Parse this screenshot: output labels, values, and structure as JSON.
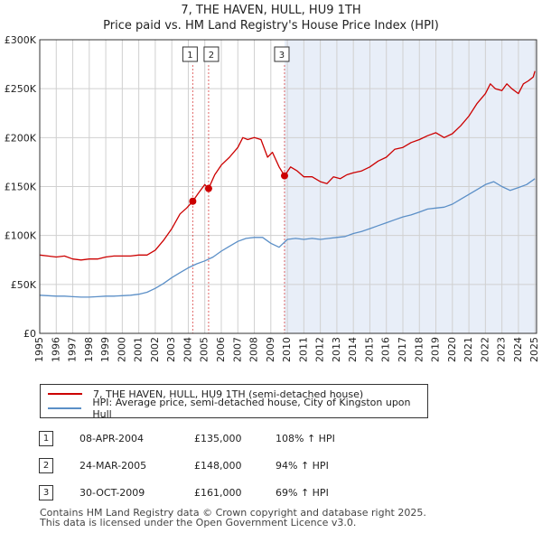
{
  "header": {
    "title": "7, THE HAVEN, HULL, HU9 1TH",
    "subtitle": "Price paid vs. HM Land Registry's House Price Index (HPI)"
  },
  "colors": {
    "property": "#cc0000",
    "hpi": "#5b8fc7",
    "shade": "#e8eef8",
    "grid": "#d0d0d0"
  },
  "chart_data": {
    "type": "line",
    "title": "Price paid vs. HM Land Registry's House Price Index (HPI)",
    "xlabel": "",
    "ylabel": "",
    "xlim": [
      1995,
      2025.1
    ],
    "ylim": [
      0,
      300000
    ],
    "grid": true,
    "y_ticks": [
      0,
      50000,
      100000,
      150000,
      200000,
      250000,
      300000
    ],
    "y_tick_labels": [
      "£0",
      "£50K",
      "£100K",
      "£150K",
      "£200K",
      "£250K",
      "£300K"
    ],
    "x_ticks": [
      1995,
      1996,
      1997,
      1998,
      1999,
      2000,
      2001,
      2002,
      2003,
      2004,
      2005,
      2006,
      2007,
      2008,
      2009,
      2010,
      2011,
      2012,
      2013,
      2014,
      2015,
      2016,
      2017,
      2018,
      2019,
      2020,
      2021,
      2022,
      2023,
      2024,
      2025
    ],
    "x_tick_labels": [
      "1995",
      "1996",
      "1997",
      "1998",
      "1999",
      "2000",
      "2001",
      "2002",
      "2003",
      "2004",
      "2005",
      "2006",
      "2007",
      "2008",
      "2009",
      "2010",
      "2011",
      "2012",
      "2013",
      "2014",
      "2015",
      "2016",
      "2017",
      "2018",
      "2019",
      "2020",
      "2021",
      "2022",
      "2023",
      "2024",
      "2025"
    ],
    "series": [
      {
        "name": "7, THE HAVEN, HULL, HU9 1TH (semi-detached house)",
        "color": "#cc0000",
        "x": [
          1995.0,
          1995.5,
          1996.0,
          1996.5,
          1997.0,
          1997.5,
          1998.0,
          1998.5,
          1999.0,
          1999.5,
          2000.0,
          2000.5,
          2001.0,
          2001.5,
          2002.0,
          2002.5,
          2003.0,
          2003.5,
          2003.9,
          2004.27,
          2004.6,
          2005.0,
          2005.23,
          2005.6,
          2006.0,
          2006.5,
          2007.0,
          2007.3,
          2007.6,
          2008.0,
          2008.4,
          2008.8,
          2009.1,
          2009.5,
          2009.83,
          2010.2,
          2010.6,
          2011.0,
          2011.5,
          2012.0,
          2012.4,
          2012.8,
          2013.2,
          2013.6,
          2014.0,
          2014.5,
          2015.0,
          2015.5,
          2016.0,
          2016.5,
          2017.0,
          2017.5,
          2018.0,
          2018.5,
          2019.0,
          2019.5,
          2020.0,
          2020.5,
          2021.0,
          2021.5,
          2022.0,
          2022.3,
          2022.6,
          2023.0,
          2023.3,
          2023.6,
          2024.0,
          2024.3,
          2024.6,
          2024.9,
          2025.0
        ],
        "values": [
          80000,
          79000,
          78000,
          79000,
          76000,
          75000,
          76000,
          76000,
          78000,
          79000,
          79000,
          79000,
          80000,
          80000,
          85000,
          95000,
          107000,
          122000,
          128000,
          135000,
          143000,
          152000,
          148000,
          162000,
          172000,
          180000,
          190000,
          200000,
          198000,
          200000,
          198000,
          180000,
          185000,
          170000,
          161000,
          170000,
          166000,
          160000,
          160000,
          155000,
          153000,
          160000,
          158000,
          162000,
          164000,
          166000,
          170000,
          176000,
          180000,
          188000,
          190000,
          195000,
          198000,
          202000,
          205000,
          200000,
          204000,
          212000,
          222000,
          235000,
          245000,
          255000,
          250000,
          248000,
          255000,
          250000,
          245000,
          255000,
          258000,
          262000,
          268000
        ]
      },
      {
        "name": "HPI: Average price, semi-detached house, City of Kingston upon Hull",
        "color": "#5b8fc7",
        "x": [
          1995.0,
          1995.5,
          1996.0,
          1996.5,
          1997.0,
          1997.5,
          1998.0,
          1998.5,
          1999.0,
          1999.5,
          2000.0,
          2000.5,
          2001.0,
          2001.5,
          2002.0,
          2002.5,
          2003.0,
          2003.5,
          2004.0,
          2004.5,
          2005.0,
          2005.5,
          2006.0,
          2006.5,
          2007.0,
          2007.5,
          2008.0,
          2008.5,
          2009.0,
          2009.5,
          2010.0,
          2010.5,
          2011.0,
          2011.5,
          2012.0,
          2012.5,
          2013.0,
          2013.5,
          2014.0,
          2014.5,
          2015.0,
          2015.5,
          2016.0,
          2016.5,
          2017.0,
          2017.5,
          2018.0,
          2018.5,
          2019.0,
          2019.5,
          2020.0,
          2020.5,
          2021.0,
          2021.5,
          2022.0,
          2022.5,
          2023.0,
          2023.5,
          2024.0,
          2024.5,
          2025.0
        ],
        "values": [
          39000,
          38500,
          38000,
          38000,
          37500,
          37000,
          37000,
          37500,
          38000,
          38000,
          38500,
          39000,
          40000,
          42000,
          46000,
          51000,
          57000,
          62000,
          67000,
          71000,
          74000,
          78000,
          84000,
          89000,
          94000,
          97000,
          98000,
          98000,
          92000,
          88000,
          96000,
          97000,
          96000,
          97000,
          96000,
          97000,
          98000,
          99000,
          102000,
          104000,
          107000,
          110000,
          113000,
          116000,
          119000,
          121000,
          124000,
          127000,
          128000,
          129000,
          132000,
          137000,
          142000,
          147000,
          152000,
          155000,
          150000,
          146000,
          149000,
          152000,
          158000
        ]
      }
    ],
    "annotations": [
      {
        "label": "1",
        "x": 2004.27,
        "value": 135000
      },
      {
        "label": "2",
        "x": 2005.23,
        "value": 148000
      },
      {
        "label": "3",
        "x": 2009.83,
        "value": 161000
      }
    ],
    "shaded_from": 2009.83
  },
  "legend": {
    "items": [
      {
        "label": "7, THE HAVEN, HULL, HU9 1TH (semi-detached house)"
      },
      {
        "label": "HPI: Average price, semi-detached house, City of Kingston upon Hull"
      }
    ]
  },
  "transactions": [
    {
      "num": "1",
      "date": "08-APR-2004",
      "price": "£135,000",
      "hpi": "108% ↑ HPI"
    },
    {
      "num": "2",
      "date": "24-MAR-2005",
      "price": "£148,000",
      "hpi": "94% ↑ HPI"
    },
    {
      "num": "3",
      "date": "30-OCT-2009",
      "price": "£161,000",
      "hpi": "69% ↑ HPI"
    }
  ],
  "footer": {
    "line1": "Contains HM Land Registry data © Crown copyright and database right 2025.",
    "line2": "This data is licensed under the Open Government Licence v3.0."
  }
}
